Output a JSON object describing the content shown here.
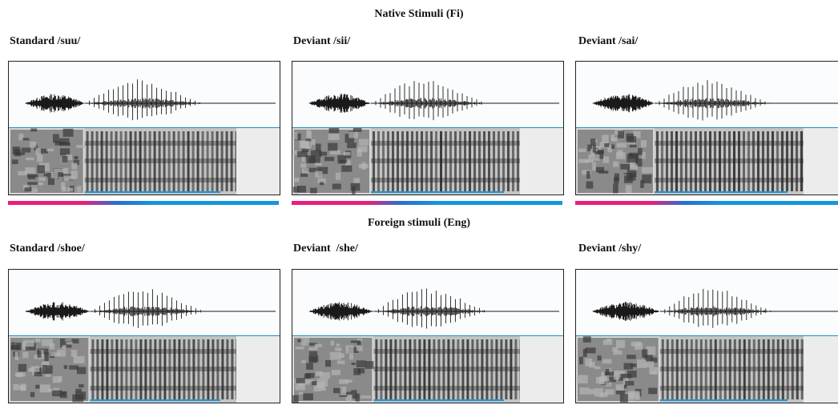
{
  "sections": {
    "native_title": "Native Stimuli (Fi)",
    "foreign_title": "Foreign stimuli (Eng)"
  },
  "panels": [
    {
      "label": "Standard /suu/",
      "onset": 0.28,
      "color": "#1a1a1a"
    },
    {
      "label": "Deviant /sii/",
      "onset": 0.29,
      "color": "#1a1a1a"
    },
    {
      "label": "Deviant /sai/",
      "onset": 0.29,
      "color": "#1a1a1a"
    },
    {
      "label": "Standard /shoe/",
      "onset": 0.3,
      "color": "#1a1a1a"
    },
    {
      "label": "Deviant  /she/",
      "onset": 0.3,
      "color": "#1a1a1a"
    },
    {
      "label": "Deviant /shy/",
      "onset": 0.31,
      "color": "#1a1a1a"
    }
  ],
  "colors": {
    "fricative": "#e8207a",
    "vowel": "#1797d9",
    "divider": "#1e8fc4"
  }
}
